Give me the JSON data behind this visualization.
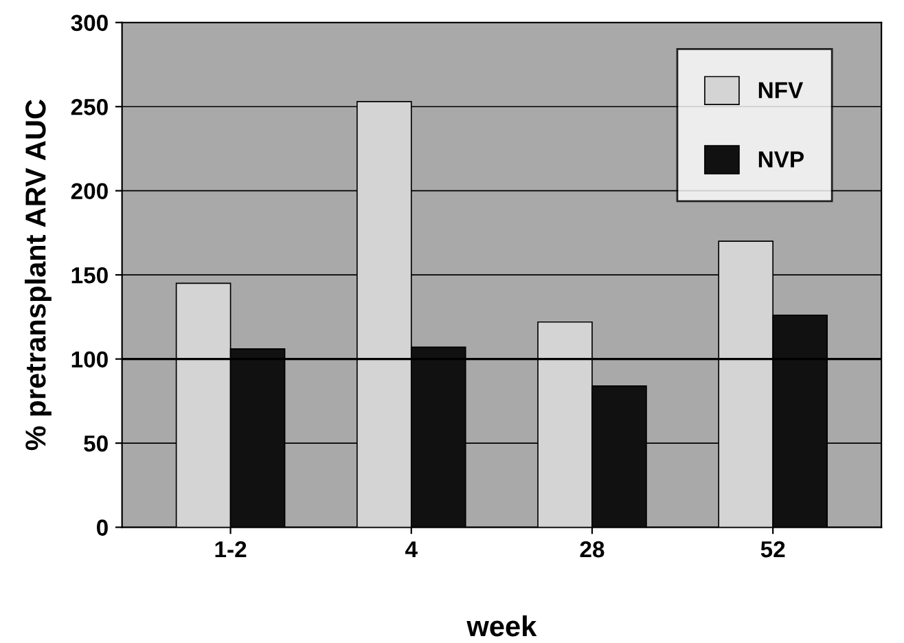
{
  "chart_data": {
    "type": "bar",
    "xlabel": "week",
    "ylabel": "% pretransplant ARV AUC",
    "categories": [
      "1-2",
      "4",
      "28",
      "52"
    ],
    "series": [
      {
        "name": "NFV",
        "color": "#d4d4d4",
        "values": [
          145,
          253,
          122,
          170
        ]
      },
      {
        "name": "NVP",
        "color": "#111111",
        "values": [
          106,
          107,
          84,
          126
        ]
      }
    ],
    "ylim": [
      0,
      300
    ],
    "yticks": [
      0,
      50,
      100,
      150,
      200,
      250,
      300
    ],
    "grid": "y",
    "legend": "top right",
    "ref_lines": [
      {
        "axis": "y",
        "value": 100,
        "color": "#000000"
      }
    ]
  }
}
